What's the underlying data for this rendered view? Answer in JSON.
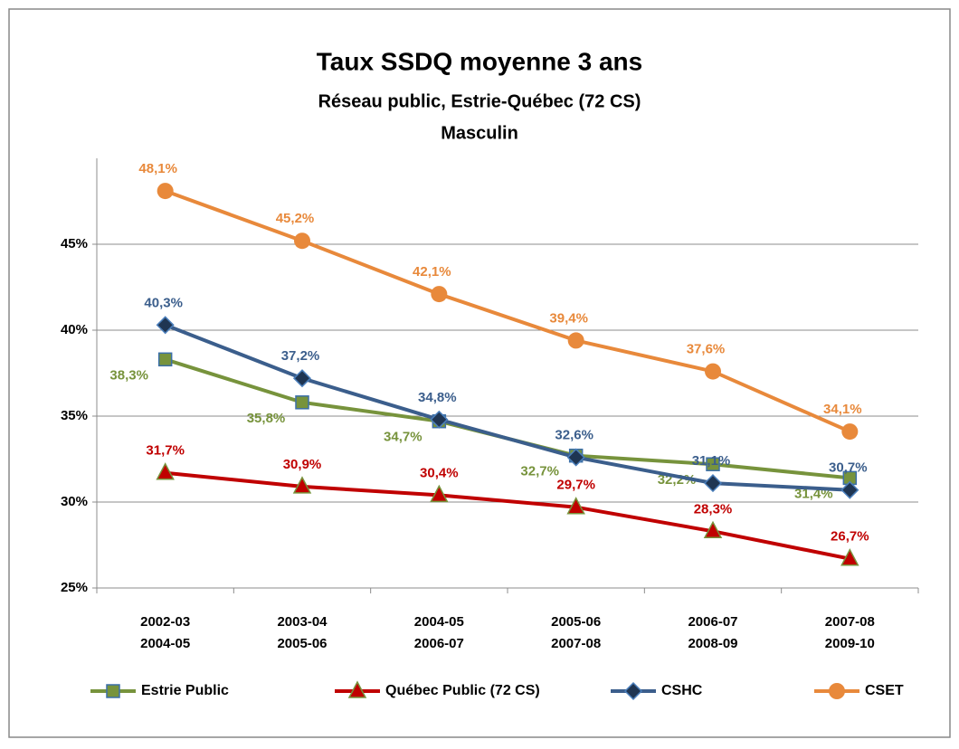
{
  "chart_data": {
    "type": "line",
    "title": "Taux SSDQ moyenne 3 ans",
    "subtitle": [
      "Réseau public, Estrie-Québec (72 CS)",
      "Masculin"
    ],
    "categories": [
      [
        "2002-03",
        "2004-05"
      ],
      [
        "2003-04",
        "2005-06"
      ],
      [
        "2004-05",
        "2006-07"
      ],
      [
        "2005-06",
        "2007-08"
      ],
      [
        "2006-07",
        "2008-09"
      ],
      [
        "2007-08",
        "2009-10"
      ]
    ],
    "ylim": [
      25,
      50
    ],
    "yticks": [
      {
        "value": 25,
        "label": "25%"
      },
      {
        "value": 30,
        "label": "30%"
      },
      {
        "value": 35,
        "label": "35%"
      },
      {
        "value": 40,
        "label": "40%"
      },
      {
        "value": 45,
        "label": "45%"
      }
    ],
    "grid": true,
    "legend": "bottom",
    "series": [
      {
        "name": "Estrie Public",
        "color": "#77933c",
        "marker": "square",
        "values": [
          38.3,
          35.8,
          34.7,
          32.7,
          32.2,
          31.4
        ],
        "value_labels": [
          "38,3%",
          "35,8%",
          "34,7%",
          "32,7%",
          "32,2%",
          "31,4%"
        ]
      },
      {
        "name": "Québec Public (72 CS)",
        "color": "#c00000",
        "marker": "triangle",
        "values": [
          31.7,
          30.9,
          30.4,
          29.7,
          28.3,
          26.7
        ],
        "value_labels": [
          "31,7%",
          "30,9%",
          "30,4%",
          "29,7%",
          "28,3%",
          "26,7%"
        ]
      },
      {
        "name": "CSHC",
        "color": "#3b5e8c",
        "marker": "diamond",
        "values": [
          40.3,
          37.2,
          34.8,
          32.6,
          31.1,
          30.7
        ],
        "value_labels": [
          "40,3%",
          "37,2%",
          "34,8%",
          "32,6%",
          "31,1%",
          "30,7%"
        ]
      },
      {
        "name": "CSET",
        "color": "#e8893b",
        "marker": "circle",
        "values": [
          48.1,
          45.2,
          42.1,
          39.4,
          37.6,
          34.1
        ],
        "value_labels": [
          "48,1%",
          "45,2%",
          "42,1%",
          "39,4%",
          "37,6%",
          "34,1%"
        ]
      }
    ]
  }
}
